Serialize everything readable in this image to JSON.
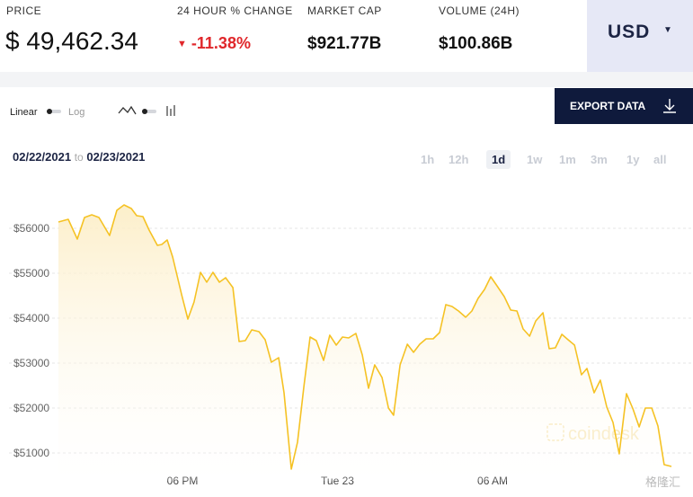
{
  "header": {
    "price_label": "PRICE",
    "price_currency": "$",
    "price": "49,462.34",
    "change_label": "24 HOUR % CHANGE",
    "change": "-11.38%",
    "market_cap_label": "MARKET CAP",
    "market_cap": "$921.77B",
    "volume_label": "VOLUME (24H)",
    "volume": "$100.86B",
    "currency": "USD"
  },
  "controls": {
    "linear": "Linear",
    "log": "Log",
    "export": "EXPORT DATA",
    "date_from": "02/22/2021",
    "date_sep": "to",
    "date_to": "02/23/2021",
    "timeframes": [
      "1h",
      "12h",
      "1d",
      "1w",
      "1m",
      "3m",
      "1y",
      "all"
    ],
    "active_timeframe": 2
  },
  "chart_data": {
    "type": "line",
    "color": "#f5c224",
    "grid": true,
    "fill": true,
    "watermark": "coindesk",
    "corner_mark": "格隆汇",
    "x": [
      13.2,
      13.58,
      13.93,
      14.21,
      14.49,
      14.77,
      15.18,
      15.46,
      15.74,
      16.02,
      16.23,
      16.47,
      16.71,
      17.03,
      17.2,
      17.41,
      17.62,
      17.97,
      18.21,
      18.45,
      18.7,
      18.94,
      19.18,
      19.43,
      19.67,
      19.95,
      20.19,
      20.43,
      20.68,
      20.96,
      21.2,
      21.44,
      21.72,
      21.93,
      22.21,
      22.45,
      22.7,
      22.94,
      23.18,
      23.46,
      23.7,
      23.95,
      24.19,
      24.43,
      24.71,
      24.96,
      25.2,
      25.44,
      25.72,
      25.97,
      26.17,
      26.42,
      26.7,
      26.94,
      27.18,
      27.43,
      27.7,
      27.95,
      28.19,
      28.43,
      28.68,
      28.96,
      29.2,
      29.44,
      29.69,
      29.93,
      30.17,
      30.45,
      30.7,
      30.94,
      31.18,
      31.43,
      31.67,
      31.95,
      32.19,
      32.43,
      32.68,
      32.92,
      33.17,
      33.44,
      33.65,
      33.93,
      34.17,
      34.42,
      34.66,
      34.9,
      35.18,
      35.43,
      35.67,
      35.91,
      36.16,
      36.4,
      36.64,
      36.92
    ],
    "values": [
      56140,
      56200,
      55760,
      56240,
      56300,
      56240,
      55840,
      56400,
      56520,
      56440,
      56280,
      56260,
      55960,
      55620,
      55640,
      55740,
      55360,
      54520,
      53980,
      54360,
      55020,
      54800,
      55020,
      54800,
      54900,
      54680,
      53480,
      53500,
      53740,
      53700,
      53520,
      53020,
      53120,
      52340,
      50640,
      51240,
      52480,
      53580,
      53500,
      53060,
      53620,
      53400,
      53580,
      53560,
      53660,
      53180,
      52440,
      52960,
      52680,
      52000,
      51840,
      52960,
      53420,
      53240,
      53420,
      53540,
      53540,
      53680,
      54300,
      54260,
      54160,
      54020,
      54160,
      54440,
      54640,
      54920,
      54720,
      54480,
      54180,
      54160,
      53760,
      53600,
      53940,
      54120,
      53320,
      53340,
      53640,
      53520,
      53400,
      52740,
      52880,
      52340,
      52620,
      52020,
      51680,
      50980,
      52320,
      51980,
      51580,
      52000,
      52000,
      51600,
      50740,
      50700
    ],
    "xlim": [
      13.2,
      36.92
    ],
    "xticks": [
      {
        "value": 18,
        "label": "06 PM"
      },
      {
        "value": 24,
        "label": "Tue 23"
      },
      {
        "value": 30,
        "label": "06 AM"
      }
    ],
    "ylim": [
      50580,
      57180
    ],
    "yticks": [
      {
        "value": 51000,
        "label": "$51000"
      },
      {
        "value": 52000,
        "label": "$52000"
      },
      {
        "value": 53000,
        "label": "$53000"
      },
      {
        "value": 54000,
        "label": "$54000"
      },
      {
        "value": 55000,
        "label": "$55000"
      },
      {
        "value": 56000,
        "label": "$56000"
      }
    ]
  }
}
